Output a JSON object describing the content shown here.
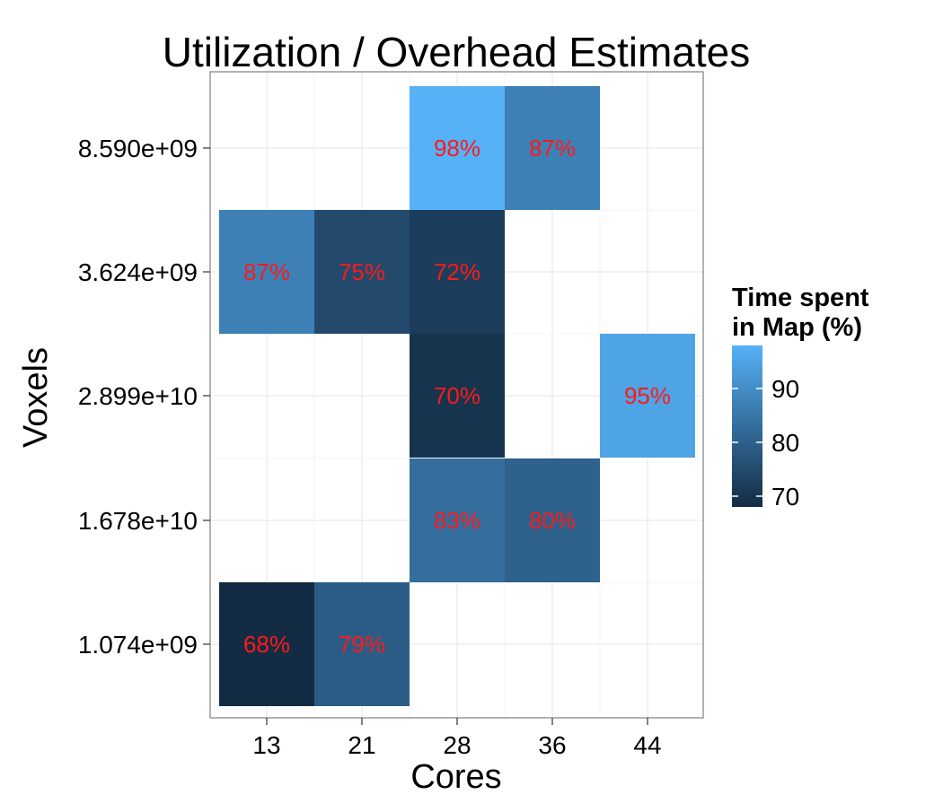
{
  "chart_data": {
    "type": "heatmap",
    "title": "Utilization / Overhead Estimates",
    "xlabel": "Cores",
    "ylabel": "Voxels",
    "x_categories": [
      "13",
      "21",
      "28",
      "36",
      "44"
    ],
    "y_categories": [
      "1.074e+09",
      "1.678e+10",
      "2.899e+10",
      "3.624e+09",
      "8.590e+09"
    ],
    "cells": [
      {
        "x": "13",
        "y": "1.074e+09",
        "value": 68,
        "label": "68%"
      },
      {
        "x": "21",
        "y": "1.074e+09",
        "value": 79,
        "label": "79%"
      },
      {
        "x": "28",
        "y": "1.678e+10",
        "value": 83,
        "label": "83%"
      },
      {
        "x": "36",
        "y": "1.678e+10",
        "value": 80,
        "label": "80%"
      },
      {
        "x": "28",
        "y": "2.899e+10",
        "value": 70,
        "label": "70%"
      },
      {
        "x": "44",
        "y": "2.899e+10",
        "value": 95,
        "label": "95%"
      },
      {
        "x": "13",
        "y": "3.624e+09",
        "value": 87,
        "label": "87%"
      },
      {
        "x": "21",
        "y": "3.624e+09",
        "value": 75,
        "label": "75%"
      },
      {
        "x": "28",
        "y": "3.624e+09",
        "value": 72,
        "label": "72%"
      },
      {
        "x": "28",
        "y": "8.590e+09",
        "value": 98,
        "label": "98%"
      },
      {
        "x": "36",
        "y": "8.590e+09",
        "value": 87,
        "label": "87%"
      }
    ],
    "legend": {
      "title": "Time spent\n in Map (%)",
      "ticks": [
        "70",
        "80",
        "90"
      ],
      "tick_values": [
        70,
        80,
        90
      ],
      "range": [
        68,
        98
      ],
      "placement": "right"
    },
    "colors": {
      "low": "#132b43",
      "high": "#56b1f7",
      "cell_label": "#ff1a1a",
      "grid": "#e5e5e5",
      "panel_border": "#7f7f7f"
    },
    "grid": true
  }
}
